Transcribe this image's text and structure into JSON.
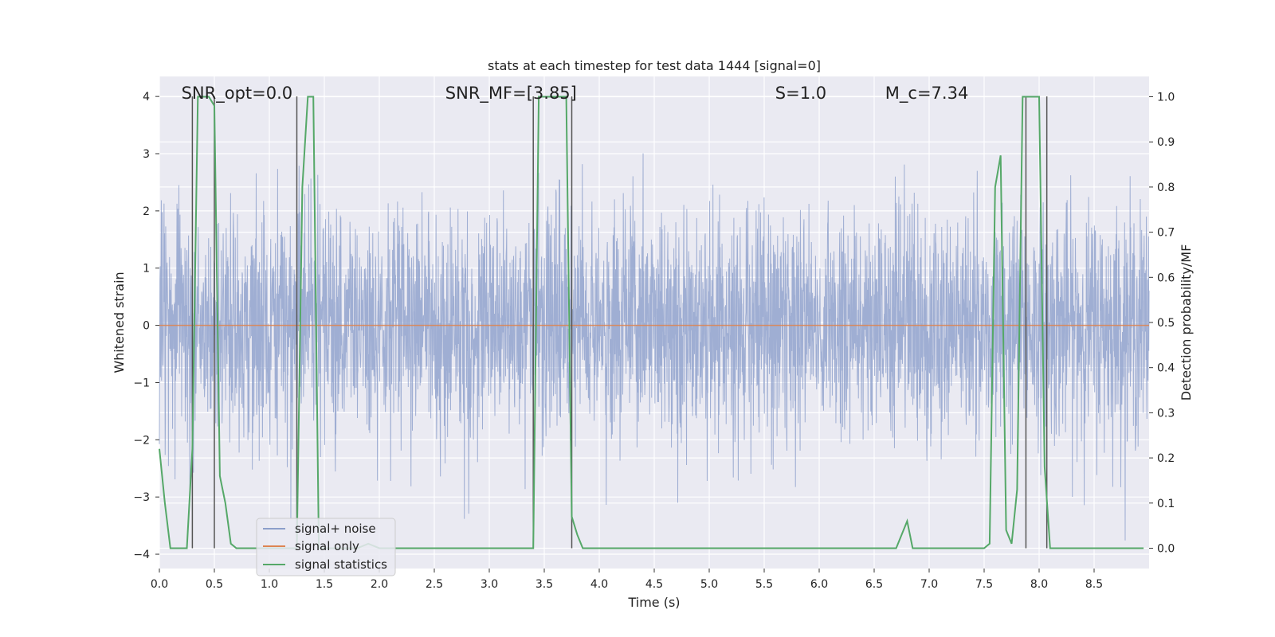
{
  "chart_data": {
    "type": "line",
    "title": "stats at each timestep for test data 1444 [signal=0]",
    "xlabel": "Time (s)",
    "ylabel_left": "Whitened strain",
    "ylabel_right": "Detection probability/MF",
    "xlim": [
      0.0,
      9.0
    ],
    "ylim_left": [
      -4.25,
      4.35
    ],
    "ylim_right": [
      -0.045,
      1.045
    ],
    "x_ticks": [
      0.0,
      0.5,
      1.0,
      1.5,
      2.0,
      2.5,
      3.0,
      3.5,
      4.0,
      4.5,
      5.0,
      5.5,
      6.0,
      6.5,
      7.0,
      7.5,
      8.0,
      8.5
    ],
    "x_tick_labels": [
      "0.0",
      "0.5",
      "1.0",
      "1.5",
      "2.0",
      "2.5",
      "3.0",
      "3.5",
      "4.0",
      "4.5",
      "5.0",
      "5.5",
      "6.0",
      "6.5",
      "7.0",
      "7.5",
      "8.0",
      "8.5"
    ],
    "y_left_ticks": [
      -4,
      -3,
      -2,
      -1,
      0,
      1,
      2,
      3,
      4
    ],
    "y_left_tick_labels": [
      "−4",
      "−3",
      "−2",
      "−1",
      "0",
      "1",
      "2",
      "3",
      "4"
    ],
    "y_right_ticks": [
      0.0,
      0.1,
      0.2,
      0.3,
      0.4,
      0.5,
      0.6,
      0.7,
      0.8,
      0.9,
      1.0
    ],
    "y_right_tick_labels": [
      "0.0",
      "0.1",
      "0.2",
      "0.3",
      "0.4",
      "0.5",
      "0.6",
      "0.7",
      "0.8",
      "0.9",
      "1.0"
    ],
    "grid": true,
    "annotations": [
      {
        "label": "SNR_opt=0.0",
        "x": 0.2
      },
      {
        "label": "SNR_MF=[3.85]",
        "x": 2.6
      },
      {
        "label": "S=1.0",
        "x": 5.6
      },
      {
        "label": "M_c=7.34",
        "x": 6.6
      }
    ],
    "legend": {
      "location": "lower-left",
      "entries": [
        "signal+ noise",
        "signal only",
        "signal statistics"
      ]
    },
    "series": [
      {
        "name": "signal+ noise",
        "axis": "left",
        "color": "#8c9fcb",
        "style": "noise",
        "envelope_sigma": 1.0,
        "approx_range": [
          -4.0,
          4.0
        ]
      },
      {
        "name": "signal only",
        "axis": "left",
        "color": "#dd8452",
        "x": [
          0.0,
          9.0
        ],
        "y": [
          0.0,
          0.0
        ]
      },
      {
        "name": "signal statistics",
        "axis": "right",
        "color": "#55a868",
        "x": [
          0.0,
          0.05,
          0.1,
          0.15,
          0.2,
          0.25,
          0.3,
          0.35,
          0.4,
          0.45,
          0.5,
          0.55,
          0.6,
          0.65,
          0.7,
          0.75,
          0.8,
          0.85,
          0.9,
          0.95,
          1.0,
          1.1,
          1.2,
          1.25,
          1.3,
          1.35,
          1.4,
          1.45,
          1.5,
          1.6,
          1.7,
          1.8,
          1.9,
          2.0,
          2.5,
          3.0,
          3.35,
          3.4,
          3.45,
          3.5,
          3.6,
          3.7,
          3.75,
          3.8,
          3.85,
          3.9,
          4.5,
          5.0,
          6.0,
          6.7,
          6.75,
          6.8,
          6.85,
          6.9,
          7.0,
          7.3,
          7.4,
          7.5,
          7.55,
          7.6,
          7.65,
          7.7,
          7.75,
          7.8,
          7.85,
          7.9,
          7.95,
          8.0,
          8.05,
          8.1,
          8.15,
          8.2,
          8.5,
          8.95
        ],
        "y": [
          0.22,
          0.1,
          0.0,
          0.0,
          0.0,
          0.0,
          0.22,
          1.0,
          1.0,
          1.0,
          0.98,
          0.16,
          0.1,
          0.01,
          0.0,
          0.0,
          0.0,
          0.0,
          0.0,
          0.0,
          0.0,
          0.0,
          0.0,
          0.0,
          0.8,
          1.0,
          1.0,
          0.0,
          0.0,
          0.0,
          0.0,
          0.0,
          0.01,
          0.0,
          0.0,
          0.0,
          0.0,
          0.0,
          1.0,
          1.0,
          1.0,
          1.0,
          0.07,
          0.03,
          0.0,
          0.0,
          0.0,
          0.0,
          0.0,
          0.0,
          0.03,
          0.06,
          0.0,
          0.0,
          0.0,
          0.0,
          0.0,
          0.0,
          0.01,
          0.8,
          0.87,
          0.04,
          0.01,
          0.13,
          1.0,
          1.0,
          1.0,
          1.0,
          0.18,
          0.0,
          0.0,
          0.0,
          0.0,
          0.0
        ]
      }
    ],
    "vertical_markers": {
      "color": "#555555",
      "x": [
        0.3,
        0.5,
        1.25,
        3.4,
        3.75,
        7.88,
        8.07
      ],
      "y_top_left": [
        4.0,
        4.0,
        4.0,
        4.0,
        4.0,
        4.0,
        4.0
      ]
    }
  }
}
